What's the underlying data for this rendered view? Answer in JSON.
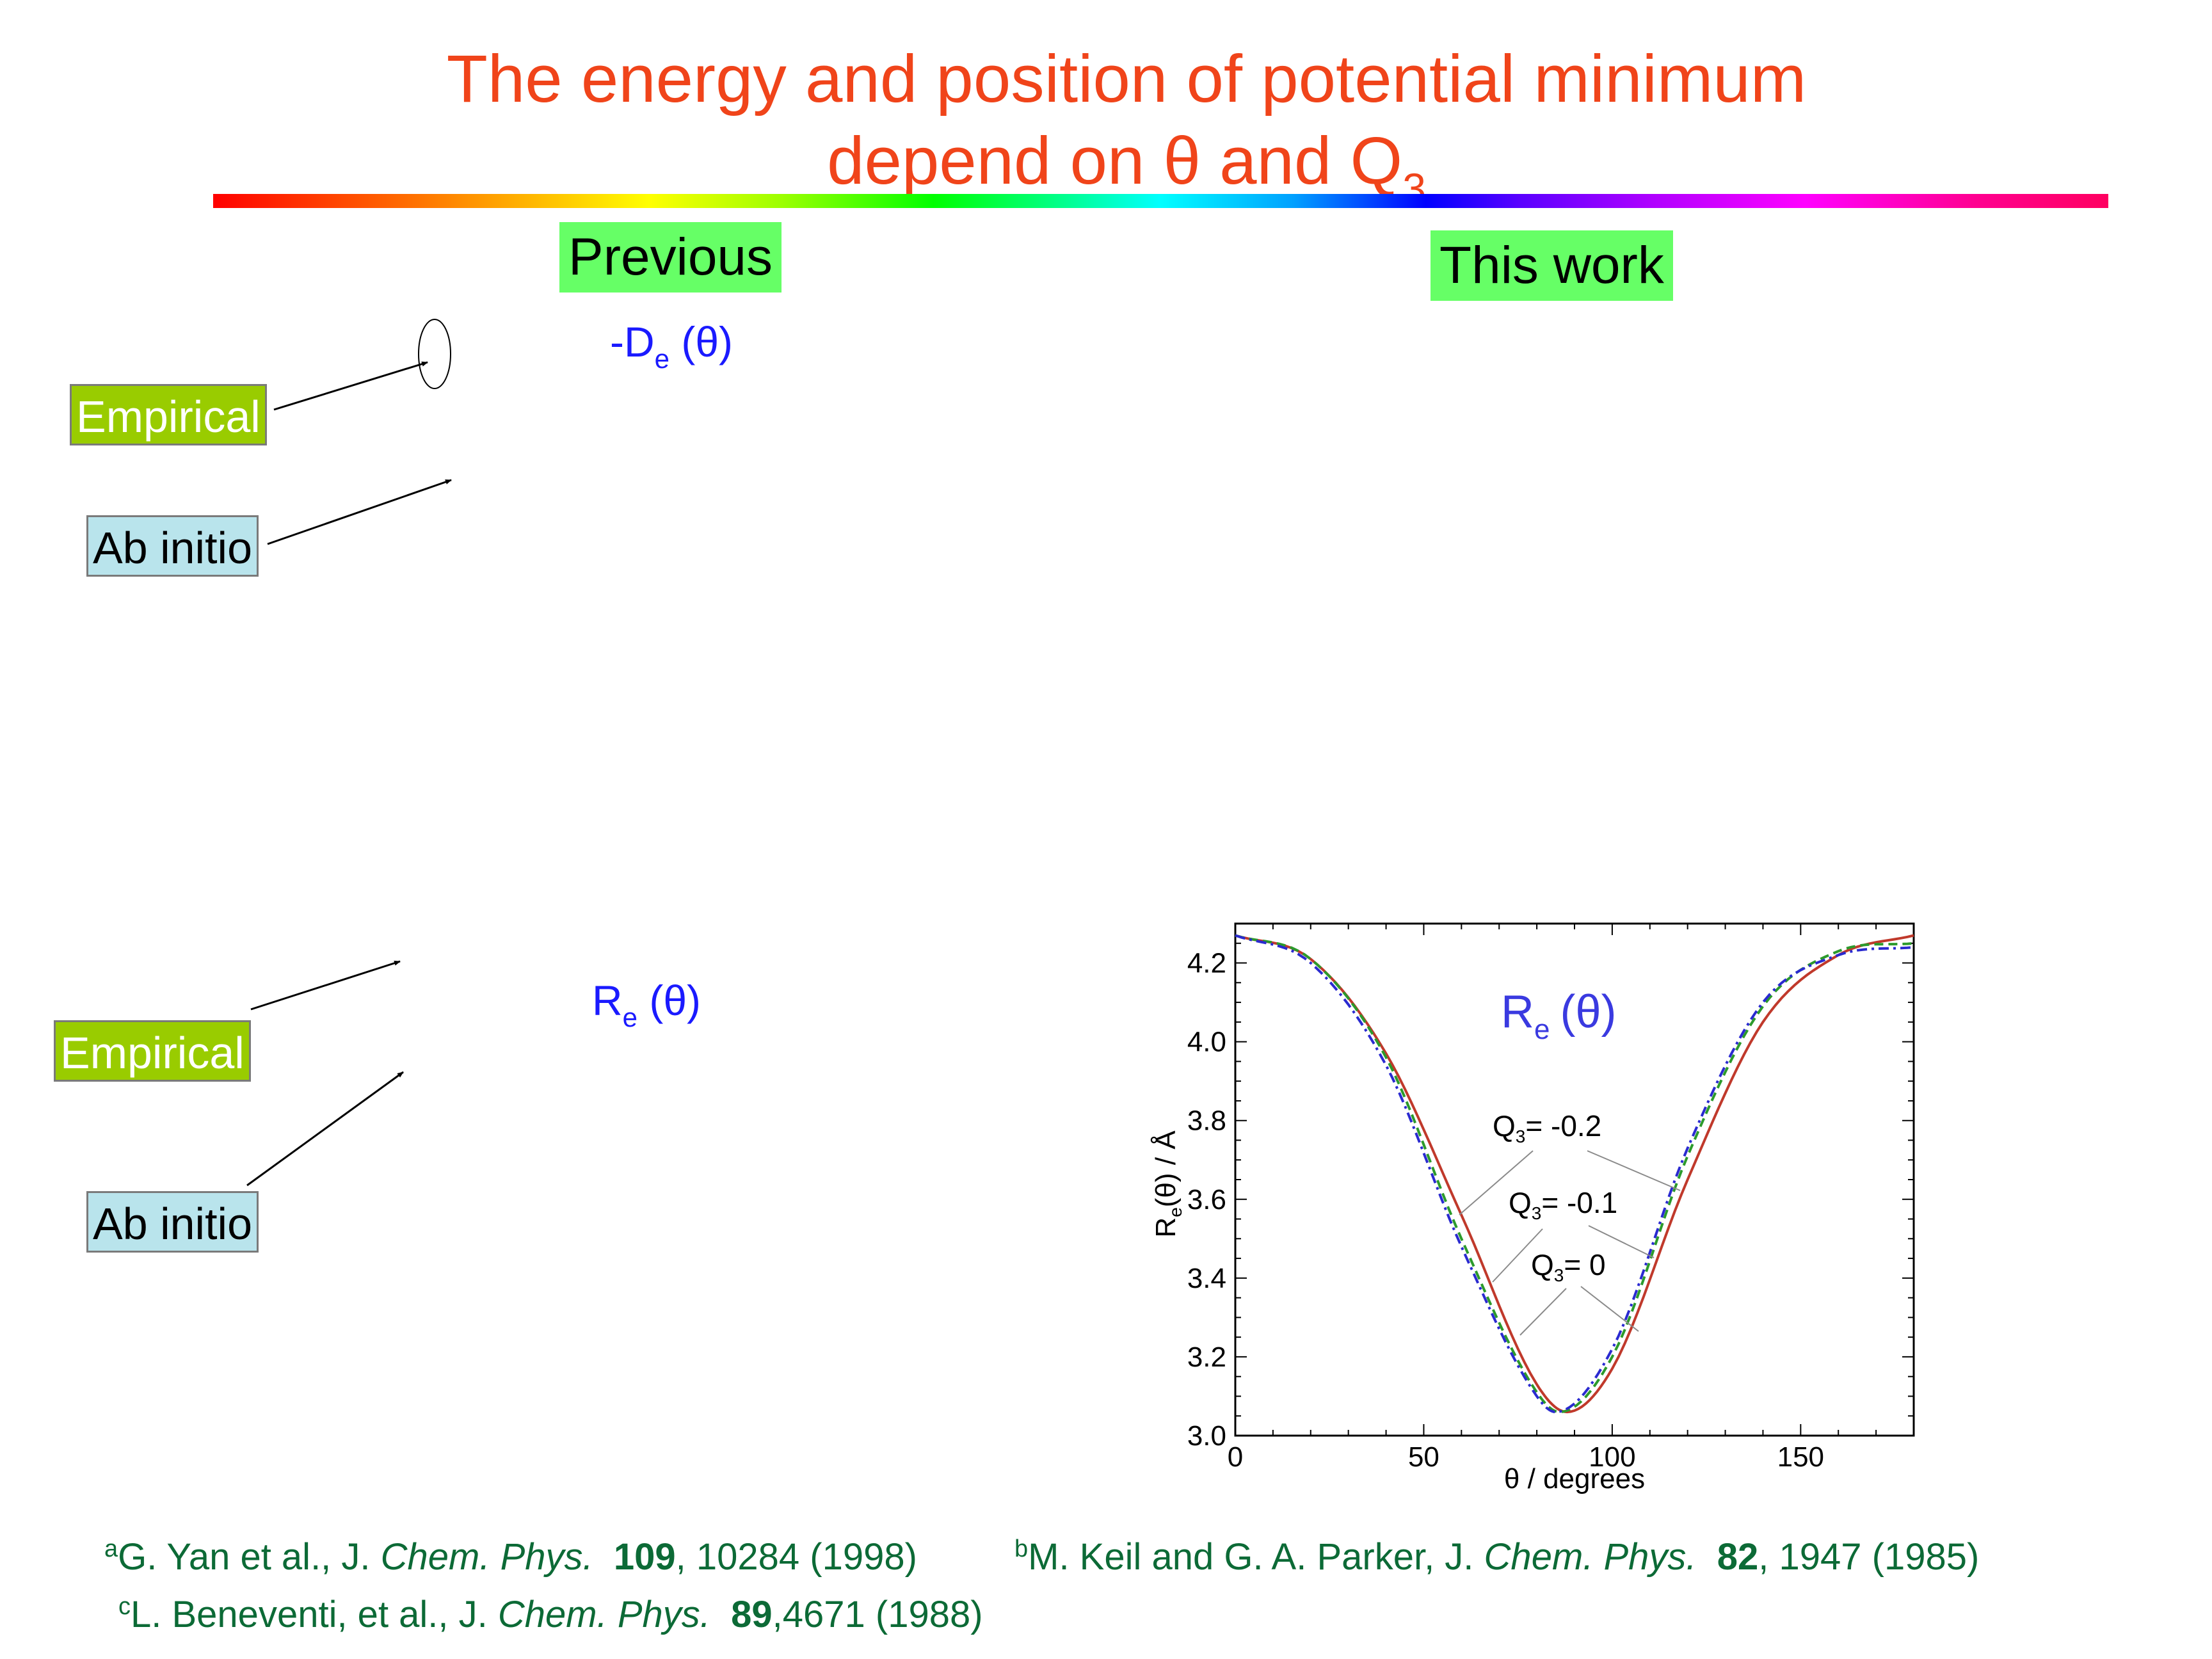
{
  "title": {
    "line1": "The energy and position of potential minimum",
    "line2_main": "depend on θ and Q",
    "line2_sub": "3"
  },
  "columns": {
    "previous": "Previous",
    "this_work": "This work"
  },
  "labels": {
    "de_main": "-D",
    "de_sub": "e",
    "de_rest": "(θ)",
    "re_main": "R",
    "re_sub": "e",
    "re_rest": "(θ)",
    "empirical_top": "Empirical",
    "abinitio_top": "Ab initio",
    "empirical_bottom": "Empirical",
    "abinitio_bottom": "Ab initio"
  },
  "chart_data": {
    "type": "line",
    "title_main": "R",
    "title_sub": "e",
    "title_rest": "(θ)",
    "xlabel": "θ / degrees",
    "ylabel_main": "R",
    "ylabel_sub": "e",
    "ylabel_rest": "(θ) / Å",
    "xlim": [
      0,
      180
    ],
    "ylim": [
      3.0,
      4.3
    ],
    "x_ticks": [
      "0",
      "50",
      "100",
      "150"
    ],
    "y_ticks": [
      "3.0",
      "3.2",
      "3.4",
      "3.6",
      "3.8",
      "4.0",
      "4.2"
    ],
    "grid": false,
    "annotations": [
      {
        "main": "Q",
        "sub": "3",
        "rest": "= -0.2"
      },
      {
        "main": "Q",
        "sub": "3",
        "rest": "= -0.1"
      },
      {
        "main": "Q",
        "sub": "3",
        "rest": "= 0"
      }
    ],
    "series": [
      {
        "color": "#c0392b",
        "dash": "solid",
        "theta_min": 88,
        "x": [
          0,
          20,
          40,
          60,
          80,
          88,
          100,
          120,
          140,
          160,
          180
        ],
        "y": [
          4.27,
          4.21,
          3.97,
          3.56,
          3.13,
          3.06,
          3.17,
          3.65,
          4.05,
          4.22,
          4.27
        ]
      },
      {
        "color": "#2c9a2c",
        "dash": "dash",
        "theta_min": 86,
        "x": [
          0,
          20,
          40,
          60,
          80,
          86,
          100,
          120,
          140,
          160,
          180
        ],
        "y": [
          4.27,
          4.21,
          3.96,
          3.5,
          3.11,
          3.06,
          3.2,
          3.71,
          4.09,
          4.23,
          4.25
        ]
      },
      {
        "color": "#2a2ad0",
        "dash": "dashdot",
        "theta_min": 85,
        "x": [
          0,
          20,
          40,
          60,
          80,
          85,
          100,
          120,
          140,
          160,
          180
        ],
        "y": [
          4.27,
          4.2,
          3.94,
          3.48,
          3.1,
          3.06,
          3.22,
          3.73,
          4.1,
          4.22,
          4.24
        ]
      }
    ]
  },
  "references": {
    "a_sup": "a",
    "a_text1": "G. Yan et al., J. ",
    "a_journal": "Chem. Phys.",
    "a_vol": "109",
    "a_rest": ", 10284 (1998)",
    "b_sup": "b",
    "b_text1": "M. Keil and G. A. Parker, J. ",
    "b_journal": "Chem. Phys.",
    "b_vol": "82",
    "b_rest": ", 1947 (1985)",
    "c_sup": "c",
    "c_text1": "L. Beneventi, et al., J. ",
    "c_journal": "Chem. Phys.",
    "c_vol": "89",
    "c_rest": ",4671 (1988)"
  }
}
